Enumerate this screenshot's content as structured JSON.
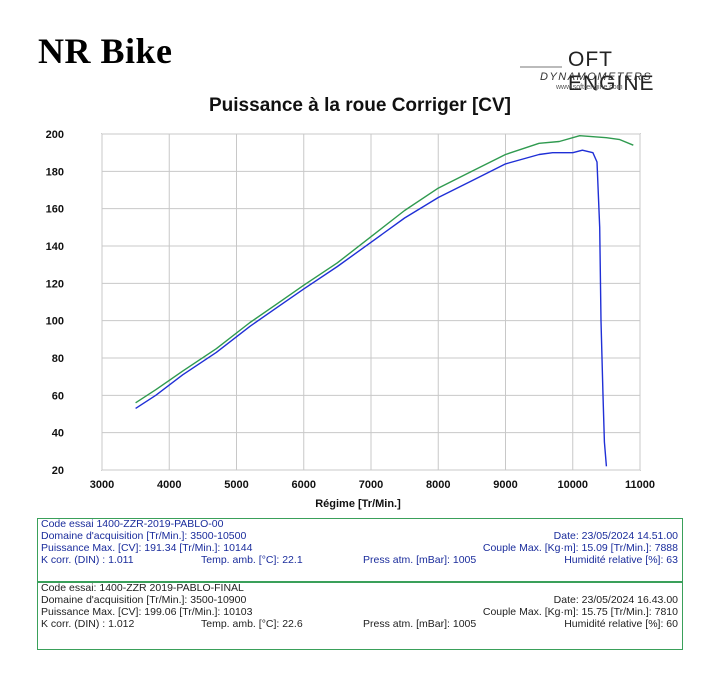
{
  "header": {
    "brand": "NR Bike",
    "logo_line1": "OFT ENGINE",
    "logo_line2": "DYNAMOMETERS",
    "logo_line3": "www.soft-engine.com"
  },
  "chart_data": {
    "type": "line",
    "title": "Puissance à la roue Corriger [CV]",
    "xlabel": "Régime [Tr/Min.]",
    "ylabel": "",
    "xlim": [
      3000,
      11000
    ],
    "ylim": [
      20,
      200
    ],
    "xticks": [
      3000,
      4000,
      5000,
      6000,
      7000,
      8000,
      9000,
      10000,
      11000
    ],
    "yticks": [
      20,
      40,
      60,
      80,
      100,
      120,
      140,
      160,
      180,
      200
    ],
    "grid": true,
    "series": [
      {
        "name": "",
        "color": "#1f2fd6",
        "points": [
          [
            3500,
            53
          ],
          [
            3800,
            60
          ],
          [
            4200,
            71
          ],
          [
            4700,
            83
          ],
          [
            5200,
            97
          ],
          [
            5600,
            107
          ],
          [
            6000,
            117
          ],
          [
            6500,
            129
          ],
          [
            7000,
            142
          ],
          [
            7500,
            155
          ],
          [
            8000,
            166
          ],
          [
            8500,
            175
          ],
          [
            9000,
            184
          ],
          [
            9500,
            189
          ],
          [
            9700,
            190
          ],
          [
            10000,
            190
          ],
          [
            10144,
            191.3
          ],
          [
            10300,
            190
          ],
          [
            10360,
            185
          ],
          [
            10400,
            150
          ],
          [
            10420,
            100
          ],
          [
            10450,
            60
          ],
          [
            10470,
            35
          ],
          [
            10500,
            22
          ]
        ]
      },
      {
        "name": "",
        "color": "#2f9a4f",
        "points": [
          [
            3500,
            56
          ],
          [
            3800,
            63
          ],
          [
            4200,
            73
          ],
          [
            4700,
            85
          ],
          [
            5200,
            99
          ],
          [
            5600,
            109
          ],
          [
            6000,
            119
          ],
          [
            6500,
            131
          ],
          [
            7000,
            145
          ],
          [
            7500,
            159
          ],
          [
            8000,
            171
          ],
          [
            8500,
            180
          ],
          [
            9000,
            189
          ],
          [
            9500,
            195
          ],
          [
            9800,
            196
          ],
          [
            10103,
            199.1
          ],
          [
            10500,
            198
          ],
          [
            10700,
            197
          ],
          [
            10900,
            194
          ]
        ]
      }
    ]
  },
  "test1": {
    "code": "Code essai  1400-ZZR-2019-PABLO-00",
    "domain": "Domaine d'acquisition [Tr/Min.]: 3500-10500",
    "date": "Date: 23/05/2024   14.51.00",
    "power": "Puissance Max. [CV]: 191.34   [Tr/Min.]: 10144",
    "torque": "Couple Max. [Kg·m]: 15.09   [Tr/Min.]: 7888",
    "kcorr": "K corr. (DIN) : 1.011",
    "temp": "Temp. amb. [°C]: 22.1",
    "press": "Press atm. [mBar]: 1005",
    "humidity": "Humidité relative [%]: 63"
  },
  "test2": {
    "code": "Code essai: 1400-ZZR 2019-PABLO-FINAL",
    "domain": "Domaine d'acquisition [Tr/Min.]: 3500-10900",
    "date": "Date: 23/05/2024   16.43.00",
    "power": "Puissance Max. [CV]: 199.06   [Tr/Min.]: 10103",
    "torque": "Couple Max. [Kg·m]: 15.75   [Tr/Min.]: 7810",
    "kcorr": "K corr. (DIN) : 1.012",
    "temp": "Temp. amb. [°C]: 22.6",
    "press": "Press atm. [mBar]: 1005",
    "humidity": "Humidité relative [%]: 60"
  }
}
